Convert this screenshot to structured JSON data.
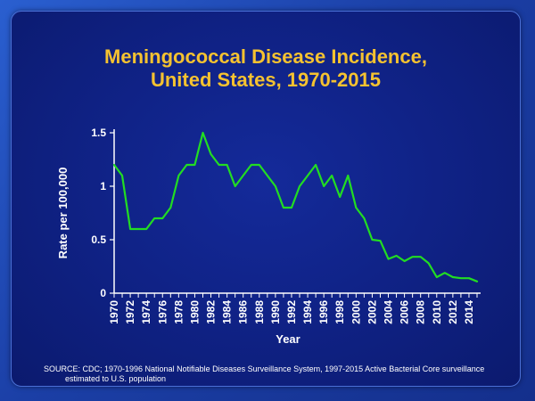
{
  "title": {
    "line1": "Meningococcal Disease Incidence,",
    "line2": "United States, 1970-2015"
  },
  "source": {
    "line1": "SOURCE: CDC; 1970-1996 National Notifiable Diseases Surveillance System, 1997-2015 Active Bacterial Core surveillance",
    "line2": "estimated to U.S. population"
  },
  "colors": {
    "line": "#22dd22",
    "axis": "#ffffff",
    "title": "#f5c230"
  },
  "chart_data": {
    "type": "line",
    "title": "Meningococcal Disease Incidence, United States, 1970-2015",
    "xlabel": "Year",
    "ylabel": "Rate per 100,000",
    "xlim": [
      1970,
      2015
    ],
    "ylim": [
      0,
      1.5
    ],
    "grid": false,
    "x_ticks": [
      "1970",
      "1972",
      "1974",
      "1976",
      "1978",
      "1980",
      "1982",
      "1984",
      "1986",
      "1988",
      "1990",
      "1992",
      "1994",
      "1996",
      "1998",
      "2000",
      "2002",
      "2004",
      "2006",
      "2008",
      "2010",
      "2012",
      "2014"
    ],
    "y_ticks": [
      "0",
      "0.5",
      "1",
      "1.5"
    ],
    "series": [
      {
        "x": [
          1970,
          1971,
          1972,
          1973,
          1974,
          1975,
          1976,
          1977,
          1978,
          1979,
          1980,
          1981,
          1982,
          1983,
          1984,
          1985,
          1986,
          1987,
          1988,
          1989,
          1990,
          1991,
          1992,
          1993,
          1994,
          1995,
          1996,
          1997,
          1998,
          1999,
          2000,
          2001,
          2002,
          2003,
          2004,
          2005,
          2006,
          2007,
          2008,
          2009,
          2010,
          2011,
          2012,
          2013,
          2014,
          2015
        ],
        "y": [
          1.2,
          1.1,
          0.6,
          0.6,
          0.6,
          0.7,
          0.7,
          0.8,
          1.1,
          1.2,
          1.2,
          1.5,
          1.3,
          1.2,
          1.2,
          1.0,
          1.1,
          1.2,
          1.2,
          1.1,
          1.0,
          0.8,
          0.8,
          1.0,
          1.1,
          1.2,
          1.0,
          1.1,
          0.9,
          1.1,
          0.8,
          0.7,
          0.5,
          0.49,
          0.32,
          0.35,
          0.3,
          0.34,
          0.34,
          0.28,
          0.15,
          0.19,
          0.15,
          0.14,
          0.14,
          0.11
        ]
      }
    ]
  }
}
